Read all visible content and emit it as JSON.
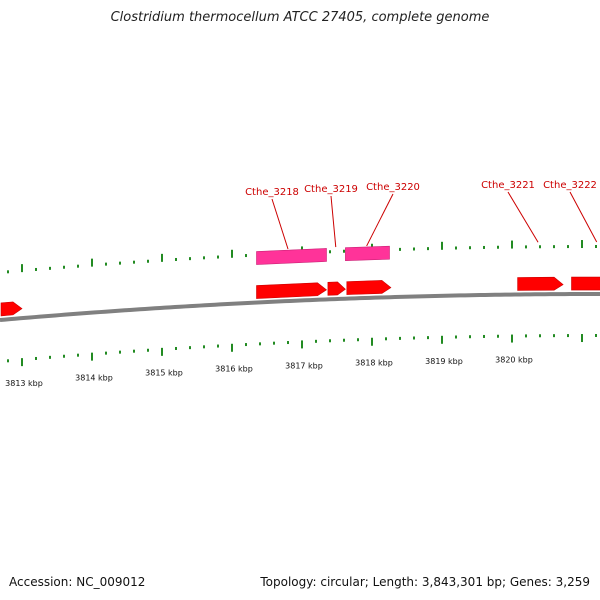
{
  "title": "Clostridium thermocellum ATCC 27405, complete genome",
  "footer": {
    "accession": "Accession: NC_009012",
    "summary": "Topology: circular; Length: 3,843,301 bp; Genes: 3,259"
  },
  "colors": {
    "backbone": "#808080",
    "tick": "#228b22",
    "gene_forward": "#ff0000",
    "gene_outline": "#cc0000",
    "cds_feature": "#ff3399",
    "label": "#cc0000"
  },
  "scale": {
    "unit": "kbp",
    "labels": [
      {
        "kbp": 3813,
        "text": "3813 kbp"
      },
      {
        "kbp": 3814,
        "text": "3814 kbp"
      },
      {
        "kbp": 3815,
        "text": "3815 kbp"
      },
      {
        "kbp": 3816,
        "text": "3816 kbp"
      },
      {
        "kbp": 3817,
        "text": "3817 kbp"
      },
      {
        "kbp": 3818,
        "text": "3818 kbp"
      },
      {
        "kbp": 3819,
        "text": "3819 kbp"
      },
      {
        "kbp": 3820,
        "text": "3820 kbp"
      }
    ]
  },
  "genes": [
    {
      "name": "Cthe_3218",
      "start": 3816.35,
      "end": 3817.35
    },
    {
      "name": "Cthe_3219",
      "start": 3817.37,
      "end": 3817.62
    },
    {
      "name": "Cthe_3220",
      "start": 3817.64,
      "end": 3818.27
    },
    {
      "name": "Cthe_3221",
      "start": 3820.08,
      "end": 3820.73
    },
    {
      "name": "Cthe_3222",
      "start": 3820.85,
      "end": 3821.65
    }
  ],
  "cds_features": [
    {
      "start": 3816.35,
      "end": 3817.35
    },
    {
      "start": 3817.62,
      "end": 3818.25
    }
  ],
  "partial_gene": {
    "start": 3812.7,
    "end": 3813.0
  }
}
